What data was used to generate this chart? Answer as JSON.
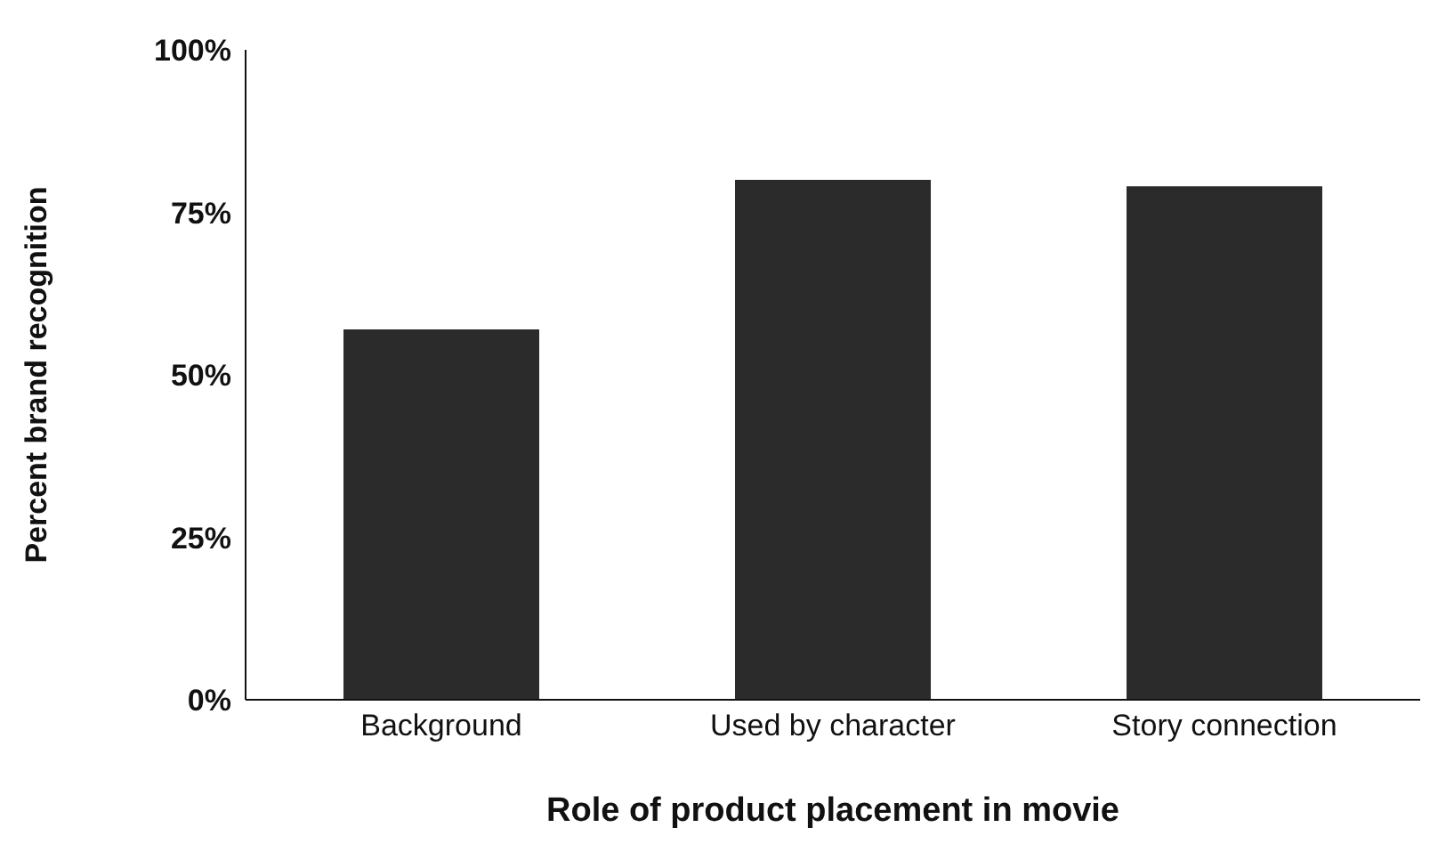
{
  "chart_data": {
    "type": "bar",
    "xlabel": "Role of product placement in movie",
    "ylabel": "Percent brand recognition",
    "categories": [
      "Background",
      "Used by character",
      "Story connection"
    ],
    "values": [
      57,
      80,
      79
    ],
    "color": "#2b2b2b",
    "ylim": [
      0,
      100
    ],
    "yticks": [
      {
        "value": 0,
        "label": "0%"
      },
      {
        "value": 25,
        "label": "25%"
      },
      {
        "value": 50,
        "label": "50%"
      },
      {
        "value": 75,
        "label": "75%"
      },
      {
        "value": 100,
        "label": "100%"
      }
    ],
    "grid": false
  }
}
